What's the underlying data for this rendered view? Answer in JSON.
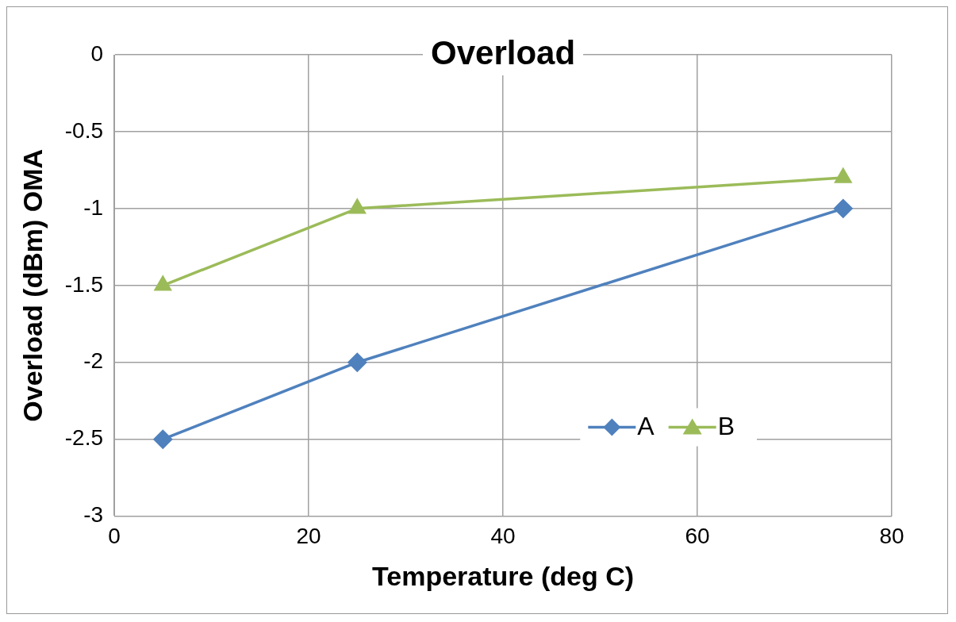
{
  "chart_data": {
    "type": "line",
    "title": "Overload",
    "xlabel": "Temperature (deg C)",
    "ylabel": "Overload (dBm) OMA",
    "xlim": [
      0,
      80
    ],
    "xticks": [
      0,
      20,
      40,
      60,
      80
    ],
    "ylim": [
      -3,
      0
    ],
    "yticks": [
      -3,
      -2.5,
      -2,
      -1.5,
      -1,
      -0.5,
      0
    ],
    "grid": true,
    "legend": "bottom right",
    "line_style": "solid",
    "series": [
      {
        "name": "A",
        "color": "#4f81bd",
        "marker": "diamond",
        "x": [
          5,
          25,
          75
        ],
        "values": [
          -2.5,
          -2,
          -1
        ]
      },
      {
        "name": "B",
        "color": "#9bbb59",
        "marker": "triangle",
        "x": [
          5,
          25,
          75
        ],
        "values": [
          -1.5,
          -1,
          -0.8
        ]
      }
    ]
  }
}
